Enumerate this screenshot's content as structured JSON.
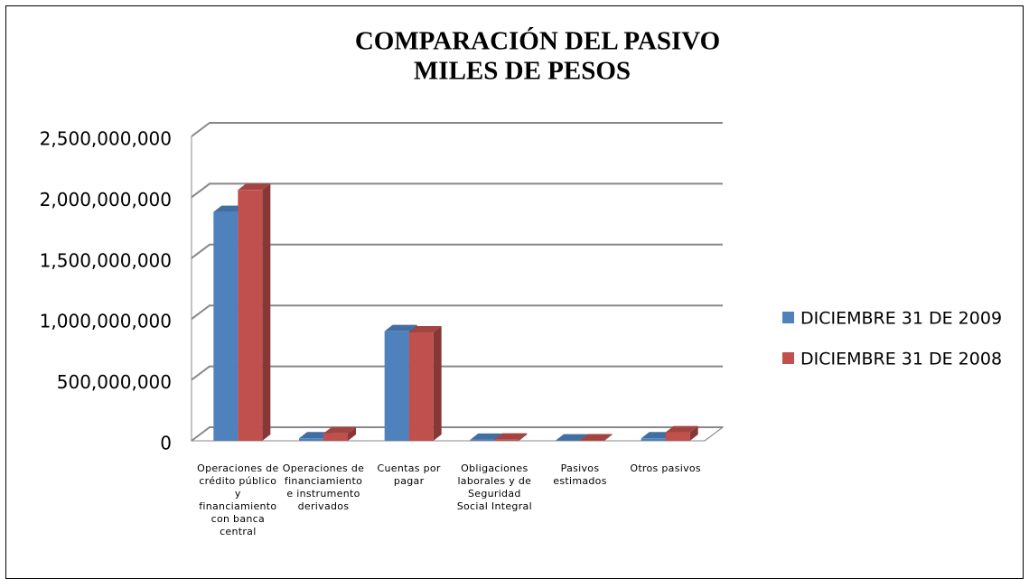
{
  "chart_data": {
    "type": "bar3d",
    "title": "COMPARACIÓN DEL PASIVO",
    "subtitle": "MILES DE PESOS",
    "categories": [
      "Operaciones de crédito público y financiamiento con banca central",
      "Operaciones de financiamiento e instrumento derivados",
      "Cuentas por pagar",
      "Obligaciones laborales y de Seguridad Social Integral",
      "Pasivos estimados",
      "Otros pasivos"
    ],
    "series": [
      {
        "name": "DICIEMBRE 31 DE 2009",
        "color": "#4f81bd",
        "values": [
          1880000000,
          20000000,
          900000000,
          8000000,
          3000000,
          20000000
        ]
      },
      {
        "name": "DICIEMBRE 31 DE 2008",
        "color": "#c0504d",
        "values": [
          2060000000,
          60000000,
          890000000,
          10000000,
          4000000,
          70000000
        ]
      }
    ],
    "ylim": [
      0,
      2500000000
    ],
    "yticks": [
      0,
      {
        "value": 500000000,
        "label": "500,000,000"
      },
      {
        "value": 1000000000,
        "label": "1,000,000,000"
      },
      {
        "value": 1500000000,
        "label": "1,500,000,000"
      },
      {
        "value": 2000000000,
        "label": "2,000,000,000"
      },
      {
        "value": 2500000000,
        "label": "2,500,000,000"
      }
    ],
    "grid": true,
    "legend": "right"
  }
}
